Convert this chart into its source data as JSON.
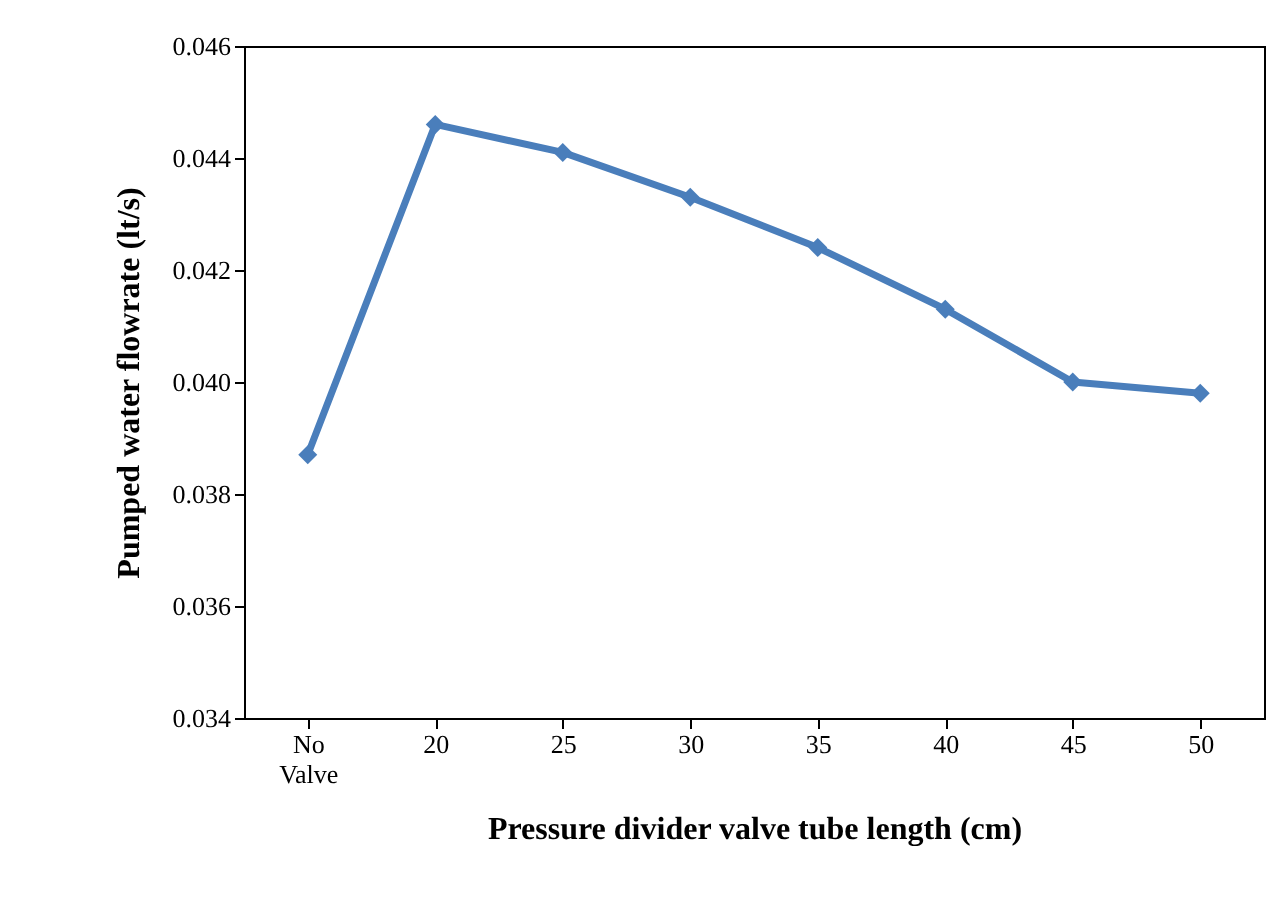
{
  "chart_data": {
    "type": "line",
    "xlabel": "Pressure divider valve tube length (cm)",
    "ylabel": "Pumped water flowrate (lt/s)",
    "categories": [
      "No Valve",
      "20",
      "25",
      "30",
      "35",
      "40",
      "45",
      "50"
    ],
    "series": [
      {
        "color": "#4a7ebb",
        "values": [
          0.0387,
          0.0446,
          0.0441,
          0.0433,
          0.0424,
          0.0413,
          0.04,
          0.0398
        ]
      }
    ],
    "ylim": [
      0.034,
      0.046
    ],
    "yticks": [
      {
        "value": 0.034,
        "label": "0.034"
      },
      {
        "value": 0.036,
        "label": "0.036"
      },
      {
        "value": 0.038,
        "label": "0.038"
      },
      {
        "value": 0.04,
        "label": "0.040"
      },
      {
        "value": 0.042,
        "label": "0.042"
      },
      {
        "value": 0.044,
        "label": "0.044"
      },
      {
        "value": 0.046,
        "label": "0.046"
      }
    ],
    "marker": "diamond",
    "line_style": "solid",
    "grid": false
  }
}
